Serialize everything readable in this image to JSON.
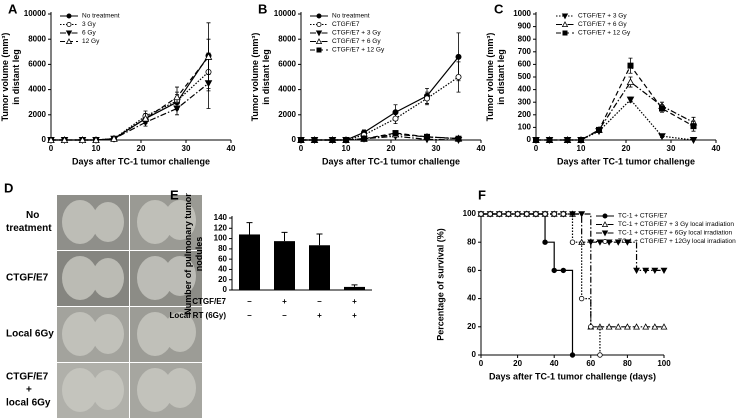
{
  "chart_data": [
    {
      "type": "line",
      "panel": "A",
      "xlabel": "Days after TC-1 tumor challenge",
      "ylabel_lines": [
        "Tumor volume (mm³)",
        "in distant leg"
      ],
      "x": [
        0,
        3,
        7,
        10,
        14,
        21,
        28,
        35
      ],
      "xlim": [
        0,
        40
      ],
      "xticks": [
        0,
        10,
        20,
        30,
        40
      ],
      "ylim": [
        0,
        10000
      ],
      "yticks": [
        0,
        2000,
        4000,
        6000,
        8000,
        10000
      ],
      "series": [
        {
          "name": "No treatment",
          "color": "#000000",
          "dash": "solid",
          "marker": "circle-filled",
          "values": [
            0,
            0,
            0,
            0,
            100,
            1700,
            3000,
            6700
          ],
          "errors": [
            0,
            0,
            0,
            0,
            50,
            300,
            600,
            2600
          ]
        },
        {
          "name": "3 Gy",
          "color": "#000000",
          "dash": "dotted",
          "marker": "circle-open",
          "values": [
            0,
            0,
            0,
            0,
            100,
            1900,
            3100,
            5400
          ],
          "errors": [
            0,
            0,
            0,
            0,
            50,
            400,
            700,
            1500
          ]
        },
        {
          "name": "6 Gy",
          "color": "#000000",
          "dash": "dashdot",
          "marker": "tri-down-filled",
          "values": [
            0,
            0,
            0,
            0,
            100,
            1400,
            2500,
            4500
          ],
          "errors": [
            0,
            0,
            0,
            0,
            50,
            300,
            500,
            2000
          ]
        },
        {
          "name": "12 Gy",
          "color": "#000000",
          "dash": "dashed",
          "marker": "tri-up-open",
          "values": [
            0,
            0,
            0,
            0,
            100,
            1700,
            3400,
            6600
          ],
          "errors": [
            0,
            0,
            0,
            0,
            50,
            400,
            800,
            1400
          ]
        }
      ]
    },
    {
      "type": "line",
      "panel": "B",
      "xlabel": "Days after TC-1 tumor challenge",
      "ylabel_lines": [
        "Tumor volume (mm³)",
        "in distant leg"
      ],
      "x": [
        0,
        3,
        7,
        10,
        14,
        21,
        28,
        35
      ],
      "xlim": [
        0,
        40
      ],
      "xticks": [
        0,
        10,
        20,
        30,
        40
      ],
      "ylim": [
        0,
        10000
      ],
      "yticks": [
        0,
        2000,
        4000,
        6000,
        8000,
        10000
      ],
      "series": [
        {
          "name": "No treatment",
          "color": "#000000",
          "dash": "solid",
          "marker": "circle-filled",
          "values": [
            0,
            0,
            0,
            0,
            600,
            2200,
            3500,
            6600
          ],
          "errors": [
            0,
            0,
            0,
            0,
            200,
            600,
            600,
            1900
          ]
        },
        {
          "name": "CTGF/E7",
          "color": "#000000",
          "dash": "dotted",
          "marker": "circle-open",
          "values": [
            0,
            0,
            0,
            0,
            400,
            1700,
            3300,
            5000
          ],
          "errors": [
            0,
            0,
            0,
            0,
            150,
            400,
            500,
            1200
          ]
        },
        {
          "name": "CTGF/E7 + 3 Gy",
          "color": "#000000",
          "dash": "dashdot",
          "marker": "tri-down-filled",
          "values": [
            0,
            0,
            0,
            0,
            100,
            300,
            50,
            0
          ],
          "errors": [
            0,
            0,
            0,
            0,
            30,
            50,
            20,
            0
          ]
        },
        {
          "name": "CTGF/E7 + 6 Gy",
          "color": "#000000",
          "dash": "dashdot",
          "marker": "tri-up-open",
          "values": [
            0,
            0,
            0,
            0,
            100,
            450,
            250,
            120
          ],
          "errors": [
            0,
            0,
            0,
            0,
            30,
            80,
            50,
            40
          ]
        },
        {
          "name": "CTGF/E7 + 12 Gy",
          "color": "#000000",
          "dash": "dashed",
          "marker": "square-filled",
          "values": [
            0,
            0,
            0,
            0,
            100,
            550,
            250,
            100
          ],
          "errors": [
            0,
            0,
            0,
            0,
            30,
            100,
            50,
            40
          ]
        }
      ]
    },
    {
      "type": "line",
      "panel": "C",
      "xlabel": "Days after TC-1 tumor challenge",
      "ylabel_lines": [
        "Tumor volume (mm³)",
        "in distant leg"
      ],
      "x": [
        0,
        3,
        7,
        10,
        14,
        21,
        28,
        35
      ],
      "xlim": [
        0,
        40
      ],
      "xticks": [
        0,
        10,
        20,
        30,
        40
      ],
      "ylim": [
        0,
        1000
      ],
      "yticks": [
        0,
        100,
        200,
        300,
        400,
        500,
        600,
        700,
        800,
        900,
        1000
      ],
      "series": [
        {
          "name": "CTGF/E7 + 3 Gy",
          "color": "#000000",
          "dash": "dotted",
          "marker": "tri-down-filled",
          "values": [
            0,
            0,
            0,
            0,
            70,
            320,
            30,
            0
          ],
          "errors": [
            0,
            0,
            0,
            0,
            10,
            20,
            10,
            0
          ]
        },
        {
          "name": "CTGF/E7 + 6 Gy",
          "color": "#000000",
          "dash": "dashdot",
          "marker": "tri-up-open",
          "values": [
            0,
            0,
            0,
            0,
            80,
            460,
            270,
            140
          ],
          "errors": [
            0,
            0,
            0,
            0,
            10,
            40,
            30,
            40
          ]
        },
        {
          "name": "CTGF/E7 + 12 Gy",
          "color": "#000000",
          "dash": "dashed",
          "marker": "square-filled",
          "values": [
            0,
            0,
            0,
            0,
            80,
            590,
            250,
            110
          ],
          "errors": [
            0,
            0,
            0,
            0,
            10,
            60,
            30,
            40
          ]
        }
      ]
    },
    {
      "type": "bar",
      "panel": "E",
      "ylabel_lines": [
        "Number of pulmonary tumor",
        "nodules"
      ],
      "color": "#000000",
      "values": [
        108,
        95,
        87,
        6
      ],
      "errors": [
        23,
        17,
        22,
        4
      ],
      "ylim": [
        0,
        140
      ],
      "yticks": [
        0,
        20,
        40,
        60,
        80,
        100,
        120,
        140
      ],
      "table_rows": [
        {
          "label": "CTGF/E7",
          "cells": [
            "–",
            "+",
            "–",
            "+"
          ]
        },
        {
          "label": "Local RT (6Gy)",
          "cells": [
            "–",
            "–",
            "+",
            "+"
          ]
        }
      ]
    },
    {
      "type": "step",
      "panel": "F",
      "xlabel": "Days after TC-1 tumor challenge (days)",
      "ylabel_lines": [
        "Percentage of survival (%)"
      ],
      "xlim": [
        0,
        100
      ],
      "xticks": [
        0,
        20,
        40,
        60,
        80,
        100
      ],
      "ylim": [
        0,
        100
      ],
      "yticks": [
        0,
        20,
        40,
        60,
        80,
        100
      ],
      "series": [
        {
          "name": "TC-1 + CTGF/E7",
          "color": "#000000",
          "dash": "solid",
          "marker": "circle-filled",
          "x": [
            0,
            5,
            10,
            15,
            20,
            25,
            30,
            35,
            40,
            45,
            50
          ],
          "values": [
            100,
            100,
            100,
            100,
            100,
            100,
            100,
            80,
            60,
            60,
            0
          ]
        },
        {
          "name": "TC-1 + CTGF/E7 + 3 Gy local irradiation",
          "color": "#000000",
          "dash": "dashdot",
          "marker": "tri-up-open",
          "x": [
            0,
            5,
            10,
            15,
            20,
            25,
            30,
            35,
            40,
            45,
            50,
            55,
            60,
            65,
            70,
            75,
            80,
            85,
            90,
            95,
            100
          ],
          "values": [
            100,
            100,
            100,
            100,
            100,
            100,
            100,
            100,
            100,
            100,
            100,
            80,
            20,
            20,
            20,
            20,
            20,
            20,
            20,
            20,
            20
          ]
        },
        {
          "name": "TC-1 + CTGF/E7 + 6Gy local irradiation",
          "color": "#000000",
          "dash": "dashdot",
          "marker": "tri-down-filled",
          "x": [
            0,
            5,
            10,
            15,
            20,
            25,
            30,
            35,
            40,
            45,
            50,
            55,
            60,
            65,
            70,
            75,
            80,
            85,
            90,
            95,
            100
          ],
          "values": [
            100,
            100,
            100,
            100,
            100,
            100,
            100,
            100,
            100,
            100,
            100,
            100,
            80,
            80,
            80,
            80,
            80,
            60,
            60,
            60,
            60
          ]
        },
        {
          "name": "TC-1 + CTGF/E7 + 12Gy local irradiation",
          "color": "#000000",
          "dash": "dotted",
          "marker": "circle-open",
          "x": [
            0,
            5,
            10,
            15,
            20,
            25,
            30,
            35,
            40,
            45,
            50,
            55,
            60,
            65
          ],
          "values": [
            100,
            100,
            100,
            100,
            100,
            100,
            100,
            100,
            100,
            100,
            80,
            40,
            20,
            0
          ]
        }
      ]
    }
  ],
  "photo_panel": {
    "panel": "D",
    "labels": [
      [
        "No",
        "treatment"
      ],
      [
        "CTGF/E7"
      ],
      [
        "Local 6Gy"
      ],
      [
        "CTGF/E7",
        "+",
        "local 6Gy"
      ]
    ]
  }
}
